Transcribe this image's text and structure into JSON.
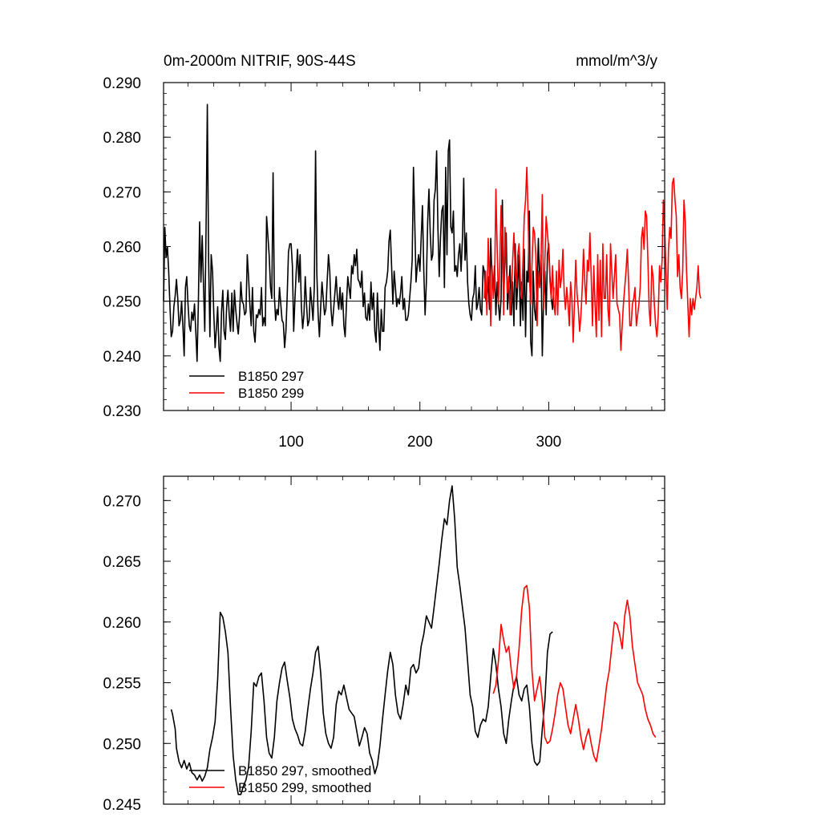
{
  "chart_data": [
    {
      "type": "line",
      "title": "0m-2000m NITRIF, 90S-44S",
      "units": "mmol/m^3/y",
      "xlabel": "",
      "ylabel": "",
      "xlim": [
        1,
        390
      ],
      "ylim": [
        0.23,
        0.29
      ],
      "xticks": [
        100,
        200,
        300
      ],
      "xtick_labels": [
        "100",
        "200",
        "300"
      ],
      "yticks": [
        0.23,
        0.24,
        0.25,
        0.26,
        0.27,
        0.28,
        0.29
      ],
      "ytick_labels": [
        "0.230",
        "0.240",
        "0.250",
        "0.260",
        "0.270",
        "0.280",
        "0.290"
      ],
      "reference_line": 0.25,
      "legend_position": "bottom-left",
      "series": [
        {
          "name": "B1850 297",
          "color": "#000000",
          "x_start": 1,
          "values": [
            0.25,
            0.2635,
            0.258,
            0.26,
            0.2555,
            0.249,
            0.2435,
            0.2445,
            0.249,
            0.251,
            0.254,
            0.2505,
            0.2455,
            0.2465,
            0.25,
            0.2455,
            0.24,
            0.2525,
            0.2545,
            0.2495,
            0.2455,
            0.2445,
            0.248,
            0.2465,
            0.2495,
            0.2445,
            0.239,
            0.2495,
            0.2645,
            0.2535,
            0.262,
            0.253,
            0.2445,
            0.263,
            0.286,
            0.2575,
            0.2435,
            0.2585,
            0.2555,
            0.2475,
            0.2415,
            0.245,
            0.249,
            0.2415,
            0.239,
            0.248,
            0.252,
            0.2445,
            0.243,
            0.249,
            0.252,
            0.2475,
            0.2445,
            0.2515,
            0.2445,
            0.252,
            0.2485,
            0.246,
            0.244,
            0.2475,
            0.2535,
            0.25,
            0.2495,
            0.2475,
            0.248,
            0.2585,
            0.2545,
            0.2495,
            0.2455,
            0.2525,
            0.2445,
            0.2425,
            0.2475,
            0.247,
            0.2485,
            0.2475,
            0.2525,
            0.2455,
            0.247,
            0.2455,
            0.2655,
            0.262,
            0.2585,
            0.2525,
            0.2505,
            0.2735,
            0.251,
            0.2465,
            0.2485,
            0.2475,
            0.2525,
            0.2495,
            0.2465,
            0.246,
            0.2415,
            0.2445,
            0.251,
            0.259,
            0.2605,
            0.2605,
            0.2565,
            0.2445,
            0.2505,
            0.2555,
            0.2595,
            0.2535,
            0.2585,
            0.249,
            0.245,
            0.2475,
            0.2545,
            0.2495,
            0.2455,
            0.2465,
            0.2525,
            0.2495,
            0.2465,
            0.2525,
            0.2775,
            0.255,
            0.2475,
            0.2435,
            0.249,
            0.2535,
            0.2505,
            0.2475,
            0.2485,
            0.2535,
            0.2585,
            0.2555,
            0.2485,
            0.2455,
            0.2485,
            0.2515,
            0.2545,
            0.2505,
            0.2485,
            0.2525,
            0.2485,
            0.2515,
            0.2455,
            0.2435,
            0.2495,
            0.2545,
            0.2525,
            0.2505,
            0.2565,
            0.255,
            0.2585,
            0.2565,
            0.2595,
            0.254,
            0.2535,
            0.2525,
            0.2555,
            0.249,
            0.2515,
            0.247,
            0.2465,
            0.2495,
            0.2465,
            0.2535,
            0.2485,
            0.2515,
            0.2445,
            0.2425,
            0.2515,
            0.2455,
            0.241,
            0.2485,
            0.2445,
            0.2445,
            0.2525,
            0.2535,
            0.2555,
            0.261,
            0.263,
            0.2565,
            0.2495,
            0.2555,
            0.2525,
            0.249,
            0.2505,
            0.2495,
            0.2515,
            0.2545,
            0.2485,
            0.2505,
            0.2465,
            0.2465,
            0.2475,
            0.2505,
            0.2535,
            0.2575,
            0.2745,
            0.2645,
            0.2535,
            0.2565,
            0.2585,
            0.2555,
            0.2615,
            0.2675,
            0.2555,
            0.2475,
            0.2535,
            0.2645,
            0.2705,
            0.2625,
            0.2575,
            0.2585,
            0.2685,
            0.2705,
            0.2775,
            0.2635,
            0.2545,
            0.2615,
            0.2665,
            0.2675,
            0.2525,
            0.2745,
            0.2585,
            0.2775,
            0.2795,
            0.2635,
            0.2625,
            0.2665,
            0.2555,
            0.2565,
            0.2545,
            0.2585,
            0.2605,
            0.2555,
            0.2615,
            0.2725,
            0.2575,
            0.2625,
            0.2535,
            0.2495,
            0.2475,
            0.2465,
            0.2505,
            0.2515,
            0.2565,
            0.2485,
            0.2495,
            0.2525,
            0.2485,
            0.2475,
            0.2565,
            0.2555,
            0.2505,
            0.2495,
            0.2545,
            0.2485,
            0.2615,
            0.2535,
            0.2525,
            0.2565,
            0.2475,
            0.2535,
            0.2495,
            0.2465,
            0.2505,
            0.2685,
            0.2495,
            0.2585,
            0.2625,
            0.2485,
            0.2525,
            0.2565,
            0.2475,
            0.2535,
            0.2455,
            0.2605,
            0.2485,
            0.2535,
            0.2585,
            0.2455,
            0.2535,
            0.2465,
            0.2595,
            0.2435,
            0.2555,
            0.2535,
            0.2665,
            0.2425,
            0.24,
            0.2555,
            0.2485,
            0.2465,
            0.2535,
            0.2615,
            0.2525,
            0.2585,
            0.24,
            0.2505,
            0.2555,
            0.2475,
            0.2585,
            0.2605,
            0.2545,
            0.2505,
            0.2485,
            0.2525
          ]
        },
        {
          "name": "B1850 299",
          "color": "#ff0000",
          "x_start": 250,
          "values": [
            0.2505,
            0.2555,
            0.2475,
            0.2615,
            0.2545,
            0.2455,
            0.2565,
            0.2505,
            0.2535,
            0.2705,
            0.2595,
            0.2495,
            0.2565,
            0.2675,
            0.2615,
            0.2475,
            0.2635,
            0.2565,
            0.2515,
            0.2545,
            0.2475,
            0.2505,
            0.2575,
            0.2625,
            0.2555,
            0.2525,
            0.2585,
            0.2605,
            0.2535,
            0.2505,
            0.2575,
            0.2655,
            0.2685,
            0.2745,
            0.2655,
            0.2545,
            0.2495,
            0.2565,
            0.2635,
            0.2625,
            0.2585,
            0.2455,
            0.2555,
            0.2525,
            0.2575,
            0.2695,
            0.2485,
            0.2575,
            0.2655,
            0.2625,
            0.2595,
            0.2535,
            0.2505,
            0.2565,
            0.2495,
            0.2475,
            0.2555,
            0.2475,
            0.2575,
            0.2525,
            0.2545,
            0.2595,
            0.2515,
            0.2485,
            0.2525,
            0.2495,
            0.2455,
            0.2535,
            0.2505,
            0.2425,
            0.2495,
            0.2575,
            0.2515,
            0.2485,
            0.2445,
            0.2475,
            0.2525,
            0.2595,
            0.2535,
            0.2495,
            0.2575,
            0.2555,
            0.2625,
            0.2545,
            0.2455,
            0.2565,
            0.2495,
            0.2435,
            0.2585,
            0.2465,
            0.2575,
            0.2435,
            0.2605,
            0.2505,
            0.2505,
            0.2585,
            0.2485,
            0.2455,
            0.2605,
            0.2555,
            0.2505,
            0.2545,
            0.2585,
            0.2495,
            0.2485,
            0.2475,
            0.241,
            0.2455,
            0.2495,
            0.2525,
            0.2555,
            0.2595,
            0.2535,
            0.2455,
            0.2455,
            0.2495,
            0.2505,
            0.2525,
            0.2455,
            0.2475,
            0.2495,
            0.2525,
            0.2615,
            0.2635,
            0.2595,
            0.2665,
            0.2655,
            0.2575,
            0.2485,
            0.2455,
            0.2565,
            0.2545,
            0.2495,
            0.2455,
            0.2435,
            0.2475,
            0.2565,
            0.2535,
            0.2575,
            0.2685,
            0.2635,
            0.2555,
            0.2485,
            0.2595,
            0.2635,
            0.2615,
            0.2715,
            0.2725,
            0.2685,
            0.2655,
            0.2545,
            0.2585,
            0.2525,
            0.2505,
            0.2555,
            0.2685,
            0.2645,
            0.2555,
            0.2495,
            0.2435,
            0.2505,
            0.2475,
            0.2505,
            0.2485,
            0.2505,
            0.2525,
            0.2565,
            0.2515,
            0.2505
          ]
        }
      ]
    },
    {
      "type": "line",
      "title": "",
      "xlabel": "",
      "ylabel": "",
      "xlim": [
        1,
        390
      ],
      "ylim": [
        0.245,
        0.272
      ],
      "xticks": [
        100,
        200,
        300
      ],
      "yticks": [
        0.245,
        0.25,
        0.255,
        0.26,
        0.265,
        0.27
      ],
      "ytick_labels": [
        "0.245",
        "0.250",
        "0.255",
        "0.260",
        "0.265",
        "0.270"
      ],
      "legend_position": "bottom-left",
      "series": [
        {
          "name": "B1850 297, smoothed",
          "color": "#000000",
          "x": [
            7,
            8,
            10,
            11,
            13,
            15,
            17,
            19,
            21,
            23,
            25,
            27,
            29,
            31,
            33,
            35,
            37,
            39,
            41,
            43,
            45,
            47,
            49,
            51,
            53,
            55,
            57,
            59,
            61,
            63,
            65,
            67,
            69,
            71,
            73,
            75,
            77,
            79,
            81,
            83,
            85,
            87,
            89,
            91,
            93,
            95,
            97,
            99,
            101,
            103,
            105,
            107,
            109,
            111,
            113,
            115,
            117,
            119,
            121,
            123,
            125,
            127,
            129,
            131,
            133,
            135,
            137,
            139,
            141,
            143,
            145,
            147,
            149,
            151,
            153,
            155,
            157,
            159,
            161,
            163,
            165,
            167,
            169,
            171,
            173,
            175,
            177,
            179,
            181,
            183,
            185,
            187,
            189,
            191,
            193,
            195,
            197,
            199,
            201,
            203,
            205,
            207,
            209,
            211,
            213,
            215,
            217,
            219,
            221,
            223,
            225,
            227,
            229,
            231,
            233,
            235,
            237,
            239,
            241,
            243,
            245,
            247,
            249,
            251,
            253,
            255,
            257,
            259,
            261,
            263,
            265,
            267,
            269,
            271,
            273,
            275,
            277,
            279,
            281,
            283,
            285,
            287,
            289,
            291,
            293,
            295,
            297,
            299,
            301,
            303
          ],
          "values": [
            0.2528,
            0.2524,
            0.2512,
            0.2496,
            0.2485,
            0.248,
            0.2486,
            0.2479,
            0.2484,
            0.2476,
            0.2474,
            0.247,
            0.2474,
            0.2469,
            0.2473,
            0.248,
            0.2495,
            0.2505,
            0.2518,
            0.2553,
            0.2608,
            0.2604,
            0.2592,
            0.2575,
            0.253,
            0.249,
            0.247,
            0.2458,
            0.2458,
            0.2465,
            0.247,
            0.248,
            0.251,
            0.255,
            0.2547,
            0.2555,
            0.2558,
            0.2535,
            0.2505,
            0.2492,
            0.2488,
            0.2505,
            0.2535,
            0.255,
            0.2562,
            0.2567,
            0.2552,
            0.2538,
            0.252,
            0.2512,
            0.2507,
            0.25,
            0.2498,
            0.251,
            0.2528,
            0.2545,
            0.2558,
            0.2575,
            0.258,
            0.2558,
            0.2525,
            0.2508,
            0.25,
            0.2496,
            0.2505,
            0.2532,
            0.2543,
            0.254,
            0.2548,
            0.2538,
            0.2528,
            0.2525,
            0.2522,
            0.251,
            0.2498,
            0.2505,
            0.2513,
            0.2508,
            0.2492,
            0.2486,
            0.2475,
            0.2482,
            0.2498,
            0.252,
            0.254,
            0.256,
            0.2575,
            0.2565,
            0.254,
            0.2525,
            0.252,
            0.2532,
            0.2548,
            0.254,
            0.2562,
            0.2565,
            0.2558,
            0.2562,
            0.258,
            0.259,
            0.2605,
            0.26,
            0.2595,
            0.2612,
            0.263,
            0.2648,
            0.2668,
            0.2685,
            0.268,
            0.27,
            0.2712,
            0.2685,
            0.2645,
            0.263,
            0.2612,
            0.2595,
            0.2568,
            0.254,
            0.253,
            0.251,
            0.2505,
            0.2515,
            0.252,
            0.2518,
            0.253,
            0.2555,
            0.2578,
            0.2565,
            0.2545,
            0.253,
            0.2508,
            0.25,
            0.252,
            0.2535,
            0.2548,
            0.2555,
            0.254,
            0.2535,
            0.2545,
            0.2548,
            0.253,
            0.25,
            0.2485,
            0.2482,
            0.2485,
            0.2512,
            0.2535,
            0.2575,
            0.259,
            0.2592
          ]
        },
        {
          "name": "B1850 299, smoothed",
          "color": "#ff0000",
          "x": [
            257,
            259,
            261,
            263,
            265,
            267,
            269,
            271,
            273,
            275,
            277,
            279,
            281,
            283,
            285,
            287,
            289,
            291,
            293,
            295,
            297,
            299,
            301,
            303,
            305,
            307,
            309,
            311,
            313,
            315,
            317,
            319,
            321,
            323,
            325,
            327,
            329,
            331,
            333,
            335,
            337,
            339,
            341,
            343,
            345,
            347,
            349,
            351,
            353,
            355,
            357,
            359,
            361,
            363,
            365,
            367,
            369,
            371,
            373,
            375,
            377,
            379,
            381,
            383
          ],
          "values": [
            0.2541,
            0.2548,
            0.2568,
            0.2598,
            0.2585,
            0.2575,
            0.258,
            0.256,
            0.2545,
            0.2555,
            0.2578,
            0.261,
            0.2628,
            0.263,
            0.2612,
            0.256,
            0.2535,
            0.2545,
            0.2555,
            0.2535,
            0.2505,
            0.25,
            0.2502,
            0.2512,
            0.2525,
            0.254,
            0.255,
            0.2545,
            0.253,
            0.2515,
            0.2508,
            0.252,
            0.2532,
            0.252,
            0.2505,
            0.2495,
            0.2505,
            0.2512,
            0.25,
            0.249,
            0.2485,
            0.2498,
            0.2512,
            0.253,
            0.2548,
            0.256,
            0.258,
            0.26,
            0.2598,
            0.259,
            0.2578,
            0.2605,
            0.2618,
            0.2605,
            0.258,
            0.2565,
            0.255,
            0.2545,
            0.254,
            0.2528,
            0.252,
            0.2515,
            0.2508,
            0.2505
          ]
        }
      ]
    }
  ]
}
